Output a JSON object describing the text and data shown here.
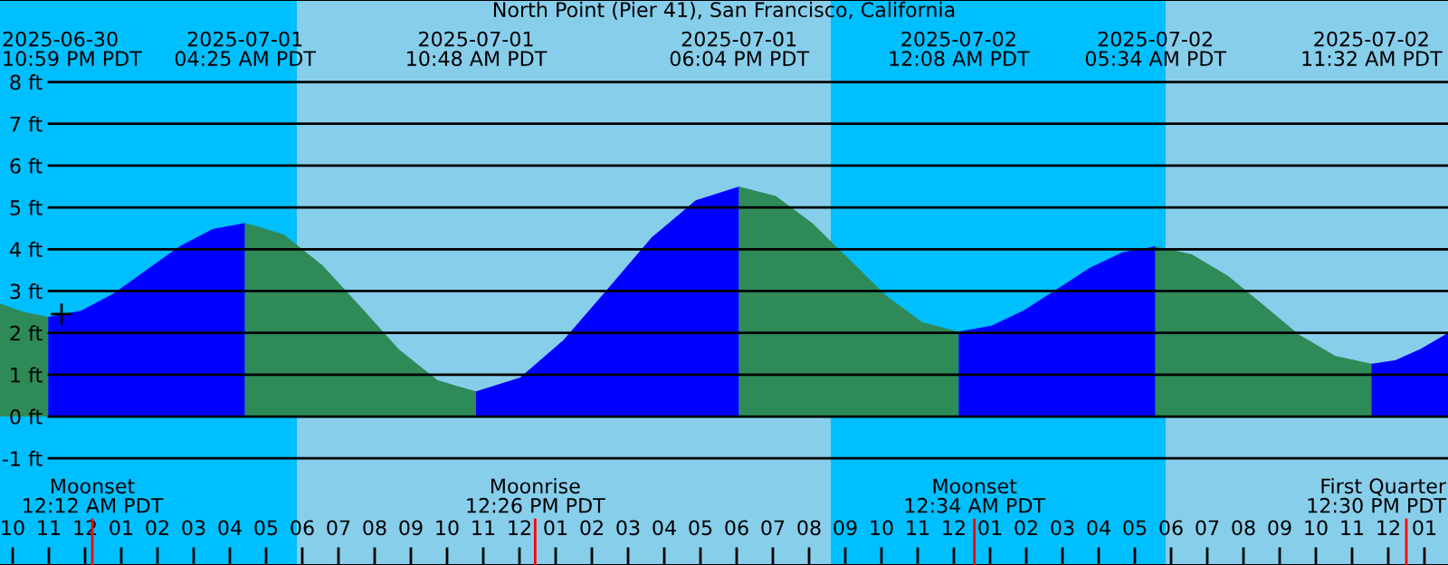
{
  "chart_data": {
    "type": "area",
    "title": "North Point (Pier 41), San Francisco, California",
    "series": [
      {
        "color": "#2e8b57",
        "x": [
          "2025-06-30T21:39",
          "2025-06-30T22:18",
          "2025-06-30T22:59"
        ],
        "values": [
          2.7,
          2.5,
          2.38
        ]
      },
      {
        "color": "#0000ff",
        "x": [
          "2025-06-30T22:59",
          "2025-06-30T23:53",
          "2025-07-01T00:47",
          "2025-07-01T01:42",
          "2025-07-01T02:37",
          "2025-07-01T03:31",
          "2025-07-01T04:25"
        ],
        "values": [
          2.38,
          2.53,
          2.94,
          3.51,
          4.07,
          4.48,
          4.63
        ]
      },
      {
        "color": "#2e8b57",
        "x": [
          "2025-07-01T04:25",
          "2025-07-01T05:29",
          "2025-07-01T06:33",
          "2025-07-01T07:37",
          "2025-07-01T08:40",
          "2025-07-01T09:44",
          "2025-07-01T10:48"
        ],
        "values": [
          4.63,
          4.36,
          3.62,
          2.62,
          1.61,
          0.87,
          0.6
        ]
      },
      {
        "color": "#0000ff",
        "x": [
          "2025-07-01T10:48",
          "2025-07-01T12:01",
          "2025-07-01T13:13",
          "2025-07-01T14:26",
          "2025-07-01T15:39",
          "2025-07-01T16:52",
          "2025-07-01T18:04"
        ],
        "values": [
          0.6,
          0.93,
          1.83,
          3.05,
          4.28,
          5.17,
          5.5
        ]
      },
      {
        "color": "#2e8b57",
        "x": [
          "2025-07-01T18:04",
          "2025-07-01T19:05",
          "2025-07-01T20:05",
          "2025-07-01T21:06",
          "2025-07-01T22:07",
          "2025-07-01T23:07",
          "2025-07-02T00:08"
        ],
        "values": [
          5.5,
          5.27,
          4.63,
          3.77,
          2.9,
          2.26,
          2.03
        ]
      },
      {
        "color": "#0000ff",
        "x": [
          "2025-07-02T00:08",
          "2025-07-02T01:02",
          "2025-07-02T01:56",
          "2025-07-02T02:51",
          "2025-07-02T03:46",
          "2025-07-02T04:40",
          "2025-07-02T05:34"
        ],
        "values": [
          2.03,
          2.17,
          2.54,
          3.05,
          3.56,
          3.93,
          4.07
        ]
      },
      {
        "color": "#2e8b57",
        "x": [
          "2025-07-02T05:34",
          "2025-07-02T06:34",
          "2025-07-02T07:34",
          "2025-07-02T08:33",
          "2025-07-02T09:32",
          "2025-07-02T10:32",
          "2025-07-02T11:32"
        ],
        "values": [
          4.07,
          3.88,
          3.37,
          2.67,
          1.96,
          1.45,
          1.26
        ]
      },
      {
        "color": "#0000ff",
        "x": [
          "2025-07-02T11:32",
          "2025-07-02T12:12",
          "2025-07-02T12:54",
          "2025-07-02T13:39"
        ],
        "values": [
          1.26,
          1.35,
          1.62,
          2.0
        ]
      },
      {
        "type": "scatter",
        "color": "#000000",
        "marker": "cross",
        "x": [
          "2025-06-30T23:21"
        ],
        "values": [
          2.45
        ]
      }
    ],
    "bands": [
      {
        "axis": "x",
        "from": "2025-06-30T21:39",
        "to": "2025-07-01T05:51",
        "color": "#00bfff"
      },
      {
        "axis": "x",
        "from": "2025-07-01T05:51",
        "to": "2025-07-01T20:36",
        "color": "#87ceeb"
      },
      {
        "axis": "x",
        "from": "2025-07-01T20:36",
        "to": "2025-07-02T05:51",
        "color": "#00bfff"
      },
      {
        "axis": "x",
        "from": "2025-07-02T05:51",
        "to": "2025-07-02T13:39",
        "color": "#87ceeb"
      }
    ],
    "ref_lines": [
      {
        "axis": "x",
        "value": "2025-07-01T00:12",
        "label": "Moonset\n12:12 AM PDT",
        "color": "#ff0000"
      },
      {
        "axis": "x",
        "value": "2025-07-01T12:26",
        "label": "Moonrise\n12:26 PM PDT",
        "color": "#ff0000"
      },
      {
        "axis": "x",
        "value": "2025-07-02T00:34",
        "label": "Moonset\n12:34 AM PDT",
        "color": "#ff0000"
      },
      {
        "axis": "x",
        "value": "2025-07-02T12:30",
        "label": "First Quarter\n12:30 PM PDT",
        "color": "#ff0000"
      }
    ],
    "annotations": [
      "2025-06-30\n10:59 PM PDT",
      "2025-07-01\n04:25 AM PDT",
      "2025-07-01\n10:48 AM PDT",
      "2025-07-01\n06:04 PM PDT",
      "2025-07-02\n12:08 AM PDT",
      "2025-07-02\n05:34 AM PDT",
      "2025-07-02\n11:32 AM PDT"
    ],
    "xlim": [
      "2025-06-30T21:39",
      "2025-07-02T13:39"
    ],
    "xticks": [
      {
        "value": "2025-06-30T22:00",
        "label": "10"
      },
      {
        "value": "2025-06-30T23:00",
        "label": "11"
      },
      {
        "value": "2025-07-01T00:00",
        "label": "12"
      },
      {
        "value": "2025-07-01T01:00",
        "label": "01"
      },
      {
        "value": "2025-07-01T02:00",
        "label": "02"
      },
      {
        "value": "2025-07-01T03:00",
        "label": "03"
      },
      {
        "value": "2025-07-01T04:00",
        "label": "04"
      },
      {
        "value": "2025-07-01T05:00",
        "label": "05"
      },
      {
        "value": "2025-07-01T06:00",
        "label": "06"
      },
      {
        "value": "2025-07-01T07:00",
        "label": "07"
      },
      {
        "value": "2025-07-01T08:00",
        "label": "08"
      },
      {
        "value": "2025-07-01T09:00",
        "label": "09"
      },
      {
        "value": "2025-07-01T10:00",
        "label": "10"
      },
      {
        "value": "2025-07-01T11:00",
        "label": "11"
      },
      {
        "value": "2025-07-01T12:00",
        "label": "12"
      },
      {
        "value": "2025-07-01T13:00",
        "label": "01"
      },
      {
        "value": "2025-07-01T14:00",
        "label": "02"
      },
      {
        "value": "2025-07-01T15:00",
        "label": "03"
      },
      {
        "value": "2025-07-01T16:00",
        "label": "04"
      },
      {
        "value": "2025-07-01T17:00",
        "label": "05"
      },
      {
        "value": "2025-07-01T18:00",
        "label": "06"
      },
      {
        "value": "2025-07-01T19:00",
        "label": "07"
      },
      {
        "value": "2025-07-01T20:00",
        "label": "08"
      },
      {
        "value": "2025-07-01T21:00",
        "label": "09"
      },
      {
        "value": "2025-07-01T22:00",
        "label": "10"
      },
      {
        "value": "2025-07-01T23:00",
        "label": "11"
      },
      {
        "value": "2025-07-02T00:00",
        "label": "12"
      },
      {
        "value": "2025-07-02T01:00",
        "label": "01"
      },
      {
        "value": "2025-07-02T02:00",
        "label": "02"
      },
      {
        "value": "2025-07-02T03:00",
        "label": "03"
      },
      {
        "value": "2025-07-02T04:00",
        "label": "04"
      },
      {
        "value": "2025-07-02T05:00",
        "label": "05"
      },
      {
        "value": "2025-07-02T06:00",
        "label": "06"
      },
      {
        "value": "2025-07-02T07:00",
        "label": "07"
      },
      {
        "value": "2025-07-02T08:00",
        "label": "08"
      },
      {
        "value": "2025-07-02T09:00",
        "label": "09"
      },
      {
        "value": "2025-07-02T10:00",
        "label": "10"
      },
      {
        "value": "2025-07-02T11:00",
        "label": "11"
      },
      {
        "value": "2025-07-02T12:00",
        "label": "12"
      },
      {
        "value": "2025-07-02T13:00",
        "label": "01"
      }
    ],
    "ylim": [
      -3.55,
      9.96
    ],
    "yticks": [
      {
        "value": -1,
        "label": "-1 ft"
      },
      {
        "value": 0,
        "label": "0 ft"
      },
      {
        "value": 1,
        "label": "1 ft"
      },
      {
        "value": 2,
        "label": "2 ft"
      },
      {
        "value": 3,
        "label": "3 ft"
      },
      {
        "value": 4,
        "label": "4 ft"
      },
      {
        "value": 5,
        "label": "5 ft"
      },
      {
        "value": 6,
        "label": "6 ft"
      },
      {
        "value": 7,
        "label": "7 ft"
      },
      {
        "value": 8,
        "label": "8 ft"
      }
    ],
    "grid": "y"
  }
}
